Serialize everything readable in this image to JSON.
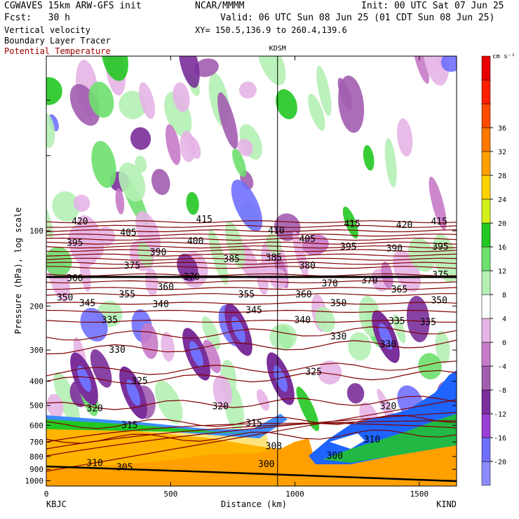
{
  "header": {
    "model": "CGWAVES 15km ARW-GFS init",
    "source": "NCAR/MMMM",
    "init": "Init: 00 UTC Sat 07 Jun 25",
    "fcst": "Fcst:   30 h",
    "valid": "Valid: 06 UTC Sun 08 Jun 25 (01 CDT Sun 08 Jun 25)",
    "field1": "Vertical velocity",
    "field2": "Boundary Layer Tracer",
    "field3": "Potential Temperature",
    "xy": "XY= 150.5,136.9 to 260.4,139.6"
  },
  "colors": {
    "theta": "#800000",
    "field3_text": "#a00000"
  },
  "chart_data": {
    "type": "heatmap",
    "xlabel": "Distance (km)",
    "ylabel": "Pressure (hPa), log scale",
    "xlim": [
      0,
      1650
    ],
    "x_ticks": [
      "0",
      "500",
      "1000",
      "1500"
    ],
    "y_ticks": [
      "100",
      "200",
      "300",
      "400",
      "500",
      "600",
      "700",
      "800",
      "900",
      "1000"
    ],
    "y_tick_values": [
      100,
      200,
      300,
      400,
      500,
      600,
      700,
      800,
      900,
      1000
    ],
    "ylim": [
      1050,
      20
    ],
    "y_scale": "log",
    "left_station": "KBJC",
    "right_station": "KIND",
    "marker_station": "KDSM",
    "marker_x": 930,
    "colorbar": {
      "unit": "cm s⁻¹",
      "labels": [
        "-20",
        "-16",
        "-12",
        "-8",
        "-4",
        "0",
        "4",
        "8",
        "12",
        "16",
        "20",
        "24",
        "28",
        "32",
        "36"
      ],
      "values": [
        -20,
        -16,
        -12,
        -8,
        -4,
        0,
        4,
        8,
        12,
        16,
        20,
        24,
        28,
        32,
        36
      ],
      "colors": [
        "#8c8cff",
        "#7070ff",
        "#9a3ed6",
        "#7a2f9a",
        "#a25db0",
        "#c67ac8",
        "#e6b4e6",
        "#ffffff",
        "#b4f0b4",
        "#6ee06e",
        "#22c822",
        "#d2f018",
        "#ffd200",
        "#ffa000",
        "#ff7800",
        "#ff4a00",
        "#ff2000",
        "#e80000"
      ]
    },
    "theta_labels": [
      {
        "v": "420",
        "x": 135,
        "p": 92
      },
      {
        "v": "415",
        "x": 635,
        "p": 90
      },
      {
        "v": "415",
        "x": 1580,
        "p": 92
      },
      {
        "v": "415",
        "x": 1230,
        "p": 94
      },
      {
        "v": "405",
        "x": 330,
        "p": 102
      },
      {
        "v": "410",
        "x": 925,
        "p": 100
      },
      {
        "v": "420",
        "x": 1440,
        "p": 95
      },
      {
        "v": "395",
        "x": 115,
        "p": 112
      },
      {
        "v": "400",
        "x": 600,
        "p": 110
      },
      {
        "v": "405",
        "x": 1050,
        "p": 108
      },
      {
        "v": "395",
        "x": 1215,
        "p": 116
      },
      {
        "v": "390",
        "x": 1400,
        "p": 118
      },
      {
        "v": "395",
        "x": 1585,
        "p": 116
      },
      {
        "v": "390",
        "x": 450,
        "p": 122
      },
      {
        "v": "385",
        "x": 745,
        "p": 130
      },
      {
        "v": "385",
        "x": 915,
        "p": 128
      },
      {
        "v": "375",
        "x": 345,
        "p": 138
      },
      {
        "v": "380",
        "x": 1050,
        "p": 138
      },
      {
        "v": "375",
        "x": 1585,
        "p": 150
      },
      {
        "v": "360",
        "x": 115,
        "p": 155
      },
      {
        "v": "370",
        "x": 585,
        "p": 153
      },
      {
        "v": "370",
        "x": 1140,
        "p": 163
      },
      {
        "v": "370",
        "x": 1300,
        "p": 158
      },
      {
        "v": "360",
        "x": 480,
        "p": 168
      },
      {
        "v": "365",
        "x": 1420,
        "p": 172
      },
      {
        "v": "350",
        "x": 75,
        "p": 185
      },
      {
        "v": "355",
        "x": 325,
        "p": 180
      },
      {
        "v": "355",
        "x": 805,
        "p": 180
      },
      {
        "v": "360",
        "x": 1035,
        "p": 180
      },
      {
        "v": "345",
        "x": 165,
        "p": 195
      },
      {
        "v": "340",
        "x": 460,
        "p": 197
      },
      {
        "v": "350",
        "x": 1175,
        "p": 195
      },
      {
        "v": "350",
        "x": 1580,
        "p": 190
      },
      {
        "v": "345",
        "x": 835,
        "p": 208
      },
      {
        "v": "335",
        "x": 255,
        "p": 228
      },
      {
        "v": "340",
        "x": 1030,
        "p": 228
      },
      {
        "v": "335",
        "x": 1410,
        "p": 230
      },
      {
        "v": "335",
        "x": 1535,
        "p": 232
      },
      {
        "v": "330",
        "x": 1175,
        "p": 265
      },
      {
        "v": "330",
        "x": 285,
        "p": 300
      },
      {
        "v": "330",
        "x": 1375,
        "p": 285
      },
      {
        "v": "325",
        "x": 1075,
        "p": 368
      },
      {
        "v": "325",
        "x": 375,
        "p": 400
      },
      {
        "v": "320",
        "x": 195,
        "p": 515
      },
      {
        "v": "320",
        "x": 700,
        "p": 505
      },
      {
        "v": "320",
        "x": 1375,
        "p": 505
      },
      {
        "v": "315",
        "x": 335,
        "p": 600
      },
      {
        "v": "315",
        "x": 835,
        "p": 588
      },
      {
        "v": "310",
        "x": 1310,
        "p": 685
      },
      {
        "v": "308",
        "x": 915,
        "p": 730
      },
      {
        "v": "300",
        "x": 1160,
        "p": 795
      },
      {
        "v": "310",
        "x": 195,
        "p": 850
      },
      {
        "v": "305",
        "x": 315,
        "p": 885
      },
      {
        "v": "300",
        "x": 885,
        "p": 860
      }
    ]
  }
}
